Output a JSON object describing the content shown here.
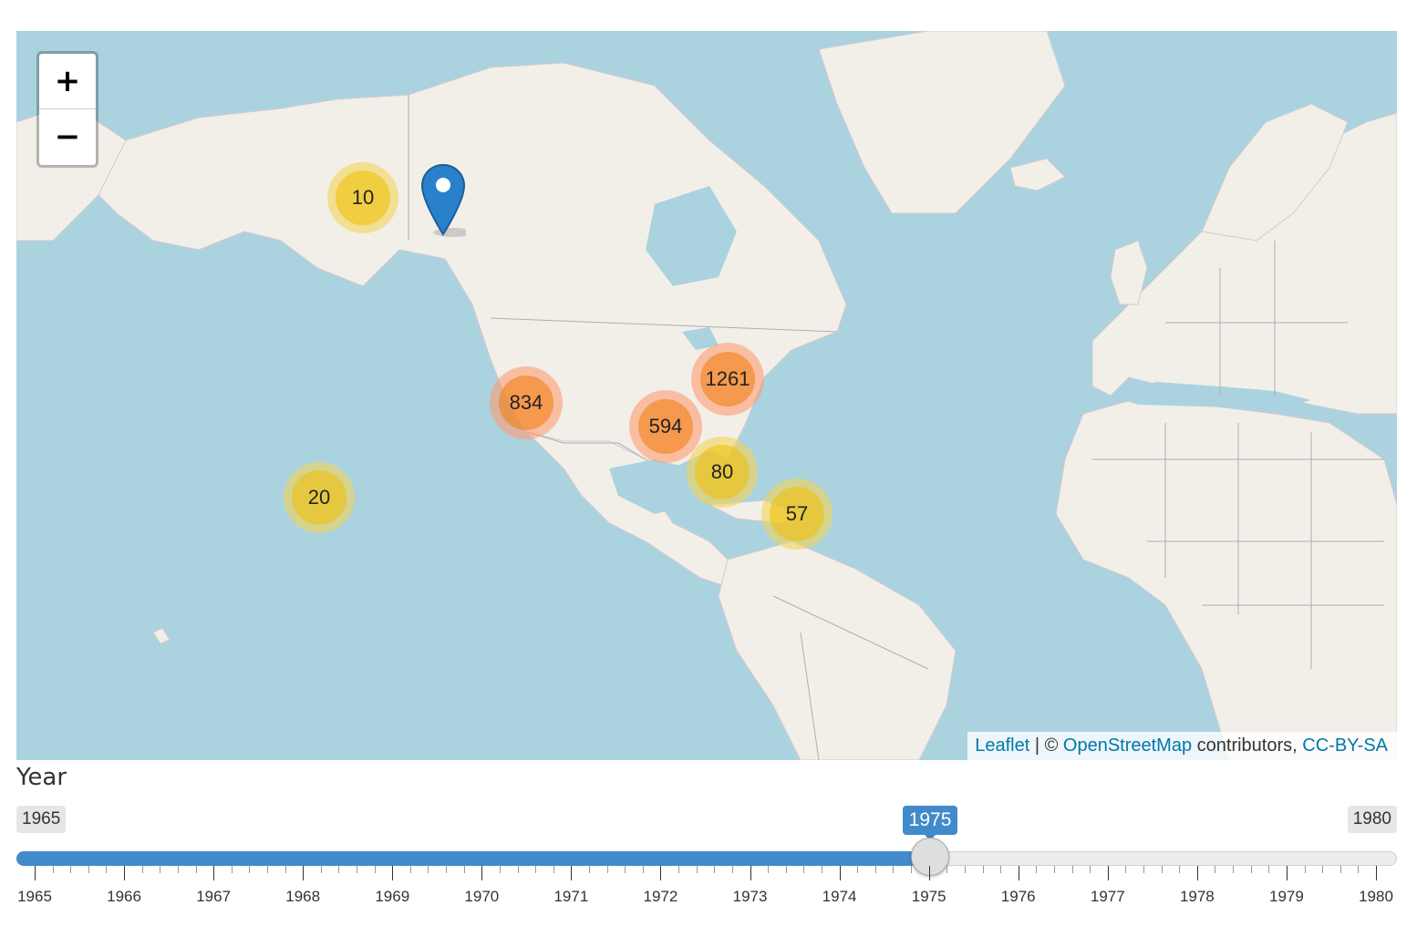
{
  "map": {
    "zoom_in_label": "+",
    "zoom_out_label": "−",
    "clusters": [
      {
        "count": "10",
        "size": "small"
      },
      {
        "count": "20",
        "size": "small"
      },
      {
        "count": "834",
        "size": "large"
      },
      {
        "count": "594",
        "size": "large"
      },
      {
        "count": "1261",
        "size": "large"
      },
      {
        "count": "80",
        "size": "small"
      },
      {
        "count": "57",
        "size": "small"
      }
    ],
    "colors": {
      "water": "#aad3df",
      "land": "#f2efe9",
      "cluster_small": "#f0c20c",
      "cluster_large": "#f18017",
      "marker": "#2a81cb"
    },
    "marker_icon": "map-pin-icon",
    "attribution": {
      "leaflet": "Leaflet",
      "separator": " | © ",
      "osm": "OpenStreetMap",
      "contributors": " contributors, ",
      "license": "CC-BY-SA"
    }
  },
  "slider": {
    "label": "Year",
    "min": "1965",
    "max": "1980",
    "value": "1975",
    "value_num": 1975,
    "min_num": 1965,
    "max_num": 1980,
    "ticks": [
      "1965",
      "1966",
      "1967",
      "1968",
      "1969",
      "1970",
      "1971",
      "1972",
      "1973",
      "1974",
      "1975",
      "1976",
      "1977",
      "1978",
      "1979",
      "1980"
    ],
    "accent": "#428bca"
  }
}
